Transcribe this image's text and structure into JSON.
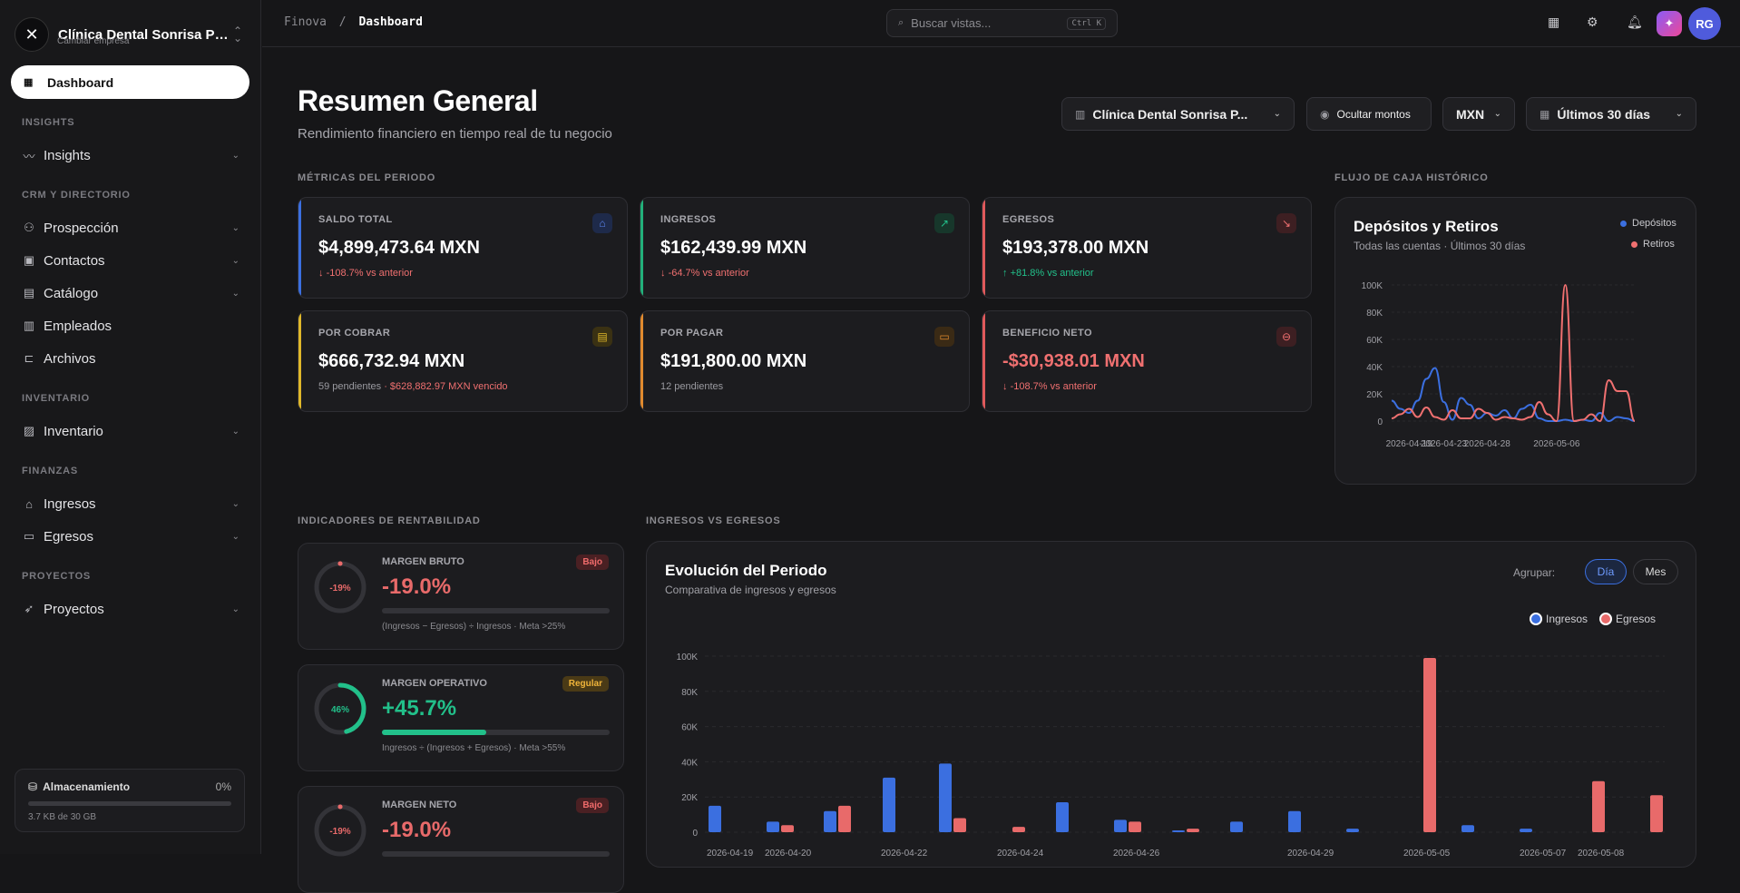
{
  "sidebar": {
    "company_name": "Clínica Dental Sonrisa Pe...",
    "company_sub": "Cambiar empresa",
    "active": "Dashboard",
    "sections": {
      "insights": "INSIGHTS",
      "crm": "CRM Y DIRECTORIO",
      "inventario": "INVENTARIO",
      "finanzas": "FINANZAS",
      "proyectos": "PROYECTOS"
    },
    "items": {
      "insights": "Insights",
      "prospeccion": "Prospección",
      "contactos": "Contactos",
      "catalogo": "Catálogo",
      "empleados": "Empleados",
      "archivos": "Archivos",
      "inventario": "Inventario",
      "ingresos": "Ingresos",
      "egresos": "Egresos",
      "proyectos": "Proyectos"
    },
    "storage": {
      "title": "Almacenamiento",
      "percent": "0%",
      "used": "3.7 KB de 30 GB"
    }
  },
  "topbar": {
    "breadcrumb_root": "Finova",
    "breadcrumb_sep": "/",
    "breadcrumb_current": "Dashboard",
    "search_placeholder": "Buscar vistas...",
    "search_shortcut": "Ctrl K",
    "avatar": "RG"
  },
  "header": {
    "title": "Resumen General",
    "subtitle": "Rendimiento financiero en tiempo real de tu negocio",
    "company_select": "Clínica Dental Sonrisa P...",
    "hide_amounts": "Ocultar montos",
    "currency": "MXN",
    "period": "Últimos 30 días"
  },
  "sections": {
    "metrics": "MÉTRICAS DEL PERIODO",
    "cashflow": "FLUJO DE CAJA HISTÓRICO",
    "indicators": "INDICADORES DE RENTABILIDAD",
    "income_vs": "INGRESOS VS EGRESOS"
  },
  "metrics": [
    {
      "label": "SALDO TOTAL",
      "value": "$4,899,473.64 MXN",
      "change": "-108.7% vs anterior",
      "extra": "",
      "accent": "#3b6fe0",
      "tone": "neg",
      "icon": "bank-icon"
    },
    {
      "label": "INGRESOS",
      "value": "$162,439.99 MXN",
      "change": "-64.7% vs anterior",
      "extra": "",
      "accent": "#22b07a",
      "tone": "neg",
      "icon": "trend-up-icon"
    },
    {
      "label": "EGRESOS",
      "value": "$193,378.00 MXN",
      "change": "+81.8% vs anterior",
      "extra": "",
      "accent": "#e0595b",
      "tone": "pos",
      "icon": "trend-down-icon"
    },
    {
      "label": "POR COBRAR",
      "value": "$666,732.94 MXN",
      "change": "59 pendientes",
      "extra": "· $628,882.97 MXN vencido",
      "accent": "#e0b82a",
      "tone": "muted",
      "icon": "receipt-icon"
    },
    {
      "label": "POR PAGAR",
      "value": "$191,800.00 MXN",
      "change": "12 pendientes",
      "extra": "",
      "accent": "#e08a2e",
      "tone": "muted",
      "icon": "cash-icon"
    },
    {
      "label": "BENEFICIO NETO",
      "value": "-$30,938.01 MXN",
      "change": "-108.7% vs anterior",
      "extra": "",
      "accent": "#e0595b",
      "tone": "neg",
      "icon": "minus-circle-icon"
    }
  ],
  "cashflow": {
    "title": "Depósitos y Retiros",
    "subtitle": "Todas las cuentas · Últimos 30 días",
    "legend_deposits": "Depósitos",
    "legend_withdrawals": "Retiros"
  },
  "indicators": [
    {
      "label": "MARGEN BRUTO",
      "ring": "-19%",
      "value": "-19.0%",
      "badge": "Bajo",
      "fill": 0.0,
      "note": "(Ingresos − Egresos) ÷ Ingresos · Meta >25%",
      "color": "#e86a6a",
      "badge_bg": "#4a2023",
      "badge_fg": "#f06b6b"
    },
    {
      "label": "MARGEN OPERATIVO",
      "ring": "46%",
      "value": "+45.7%",
      "badge": "Regular",
      "fill": 0.457,
      "note": "Ingresos ÷ (Ingresos + Egresos) · Meta >55%",
      "color": "#22c08a",
      "badge_bg": "#4a3a16",
      "badge_fg": "#f0b43a"
    },
    {
      "label": "MARGEN NETO",
      "ring": "-19%",
      "value": "-19.0%",
      "badge": "Bajo",
      "fill": 0.0,
      "note": "",
      "color": "#e86a6a",
      "badge_bg": "#4a2023",
      "badge_fg": "#f06b6b"
    }
  ],
  "evolution": {
    "title": "Evolución del Periodo",
    "subtitle": "Comparativa de ingresos y egresos",
    "group_label": "Agrupar:",
    "group_day": "Día",
    "group_month": "Mes",
    "legend_income": "Ingresos",
    "legend_expense": "Egresos"
  },
  "chart_data": [
    {
      "type": "line",
      "x": [
        "2026-04-17",
        "2026-04-18",
        "2026-04-19",
        "2026-04-20",
        "2026-04-21",
        "2026-04-22",
        "2026-04-23",
        "2026-04-24",
        "2026-04-25",
        "2026-04-26",
        "2026-04-27",
        "2026-04-28",
        "2026-04-29",
        "2026-04-30",
        "2026-05-01",
        "2026-05-02",
        "2026-05-03",
        "2026-05-04",
        "2026-05-05",
        "2026-05-06",
        "2026-05-07",
        "2026-05-08",
        "2026-05-09",
        "2026-05-10",
        "2026-05-11",
        "2026-05-12",
        "2026-05-13",
        "2026-05-14",
        "2026-05-15"
      ],
      "xticks": [
        "2026-04-19",
        "2026-04-23",
        "2026-04-28",
        "2026-05-06"
      ],
      "yticks": [
        "0",
        "20K",
        "40K",
        "60K",
        "80K",
        "100K"
      ],
      "ylim": [
        0,
        100000
      ],
      "series": [
        {
          "name": "Depósitos",
          "color": "#3b6fe0",
          "values": [
            15000,
            9000,
            6000,
            15000,
            31000,
            39000,
            14000,
            1000,
            17000,
            12000,
            2000,
            6000,
            4000,
            8000,
            2000,
            9000,
            12000,
            2000,
            0,
            0,
            1000,
            0,
            1000,
            0,
            6000,
            0,
            3000,
            2000,
            0
          ]
        },
        {
          "name": "Retiros",
          "color": "#f07070",
          "values": [
            2000,
            5000,
            9000,
            3000,
            10000,
            3000,
            1000,
            8000,
            2000,
            2000,
            9000,
            6000,
            1000,
            3000,
            2000,
            1000,
            3000,
            14000,
            5000,
            0,
            100000,
            0,
            1000,
            5000,
            0,
            30000,
            22000,
            22000,
            0
          ]
        }
      ]
    },
    {
      "type": "bar",
      "categories": [
        "2026-04-19",
        "2026-04-20",
        "2026-04-21",
        "2026-04-22",
        "2026-04-23",
        "2026-04-24",
        "2026-04-25",
        "2026-04-26",
        "2026-04-27",
        "2026-04-28",
        "2026-04-29",
        "2026-04-30",
        "2026-05-05",
        "2026-05-06",
        "2026-05-07",
        "2026-05-08",
        "2026-05-09"
      ],
      "xticks": [
        "2026-04-19",
        "2026-04-20",
        "2026-04-22",
        "2026-04-24",
        "2026-04-26",
        "2026-04-29",
        "2026-05-05",
        "2026-05-07",
        "2026-05-08"
      ],
      "yticks": [
        "0",
        "20K",
        "40K",
        "60K",
        "80K",
        "100K"
      ],
      "ylim": [
        0,
        100000
      ],
      "series": [
        {
          "name": "Ingresos",
          "color": "#3b6fe0",
          "values": [
            15000,
            6000,
            12000,
            31000,
            39000,
            0,
            17000,
            7000,
            1000,
            6000,
            12000,
            2000,
            0,
            4000,
            2000,
            0,
            0
          ]
        },
        {
          "name": "Egresos",
          "color": "#e86a6a",
          "values": [
            0,
            4000,
            15000,
            0,
            8000,
            3000,
            0,
            6000,
            2000,
            0,
            0,
            0,
            0,
            0,
            0,
            29000,
            21000
          ]
        }
      ],
      "extra_expense_bar": {
        "category": "2026-05-06",
        "value": 99000
      }
    }
  ]
}
